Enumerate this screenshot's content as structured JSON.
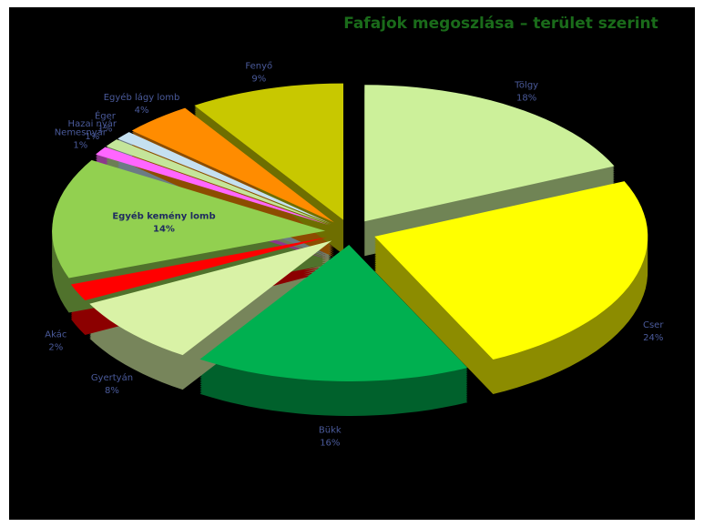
{
  "chart_data": {
    "type": "pie3d",
    "title": "Fafajok megoszlása – terület szerint",
    "categories": [
      "Tölgy",
      "Cser",
      "Bükk",
      "Gyertyán",
      "Akác",
      "Egyéb kemény lomb",
      "Nemesnyár",
      "Hazai nyár",
      "Éger",
      "Egyéb lágy lomb",
      "Fenyő"
    ],
    "values": [
      18,
      24,
      16,
      8,
      2,
      14,
      1,
      1,
      1,
      4,
      9
    ],
    "value_labels": [
      "18%",
      "24%",
      "16%",
      "8%",
      "2%",
      "14%",
      "1%",
      "1%",
      "1%",
      "4%",
      "9%"
    ],
    "colors": [
      "#ccf09a",
      "#ffff00",
      "#00b050",
      "#d9f2a6",
      "#ff0000",
      "#92d050",
      "#ff66ff",
      "#c4e59a",
      "#c5e0f0",
      "#ff8c00",
      "#c8c800"
    ]
  }
}
